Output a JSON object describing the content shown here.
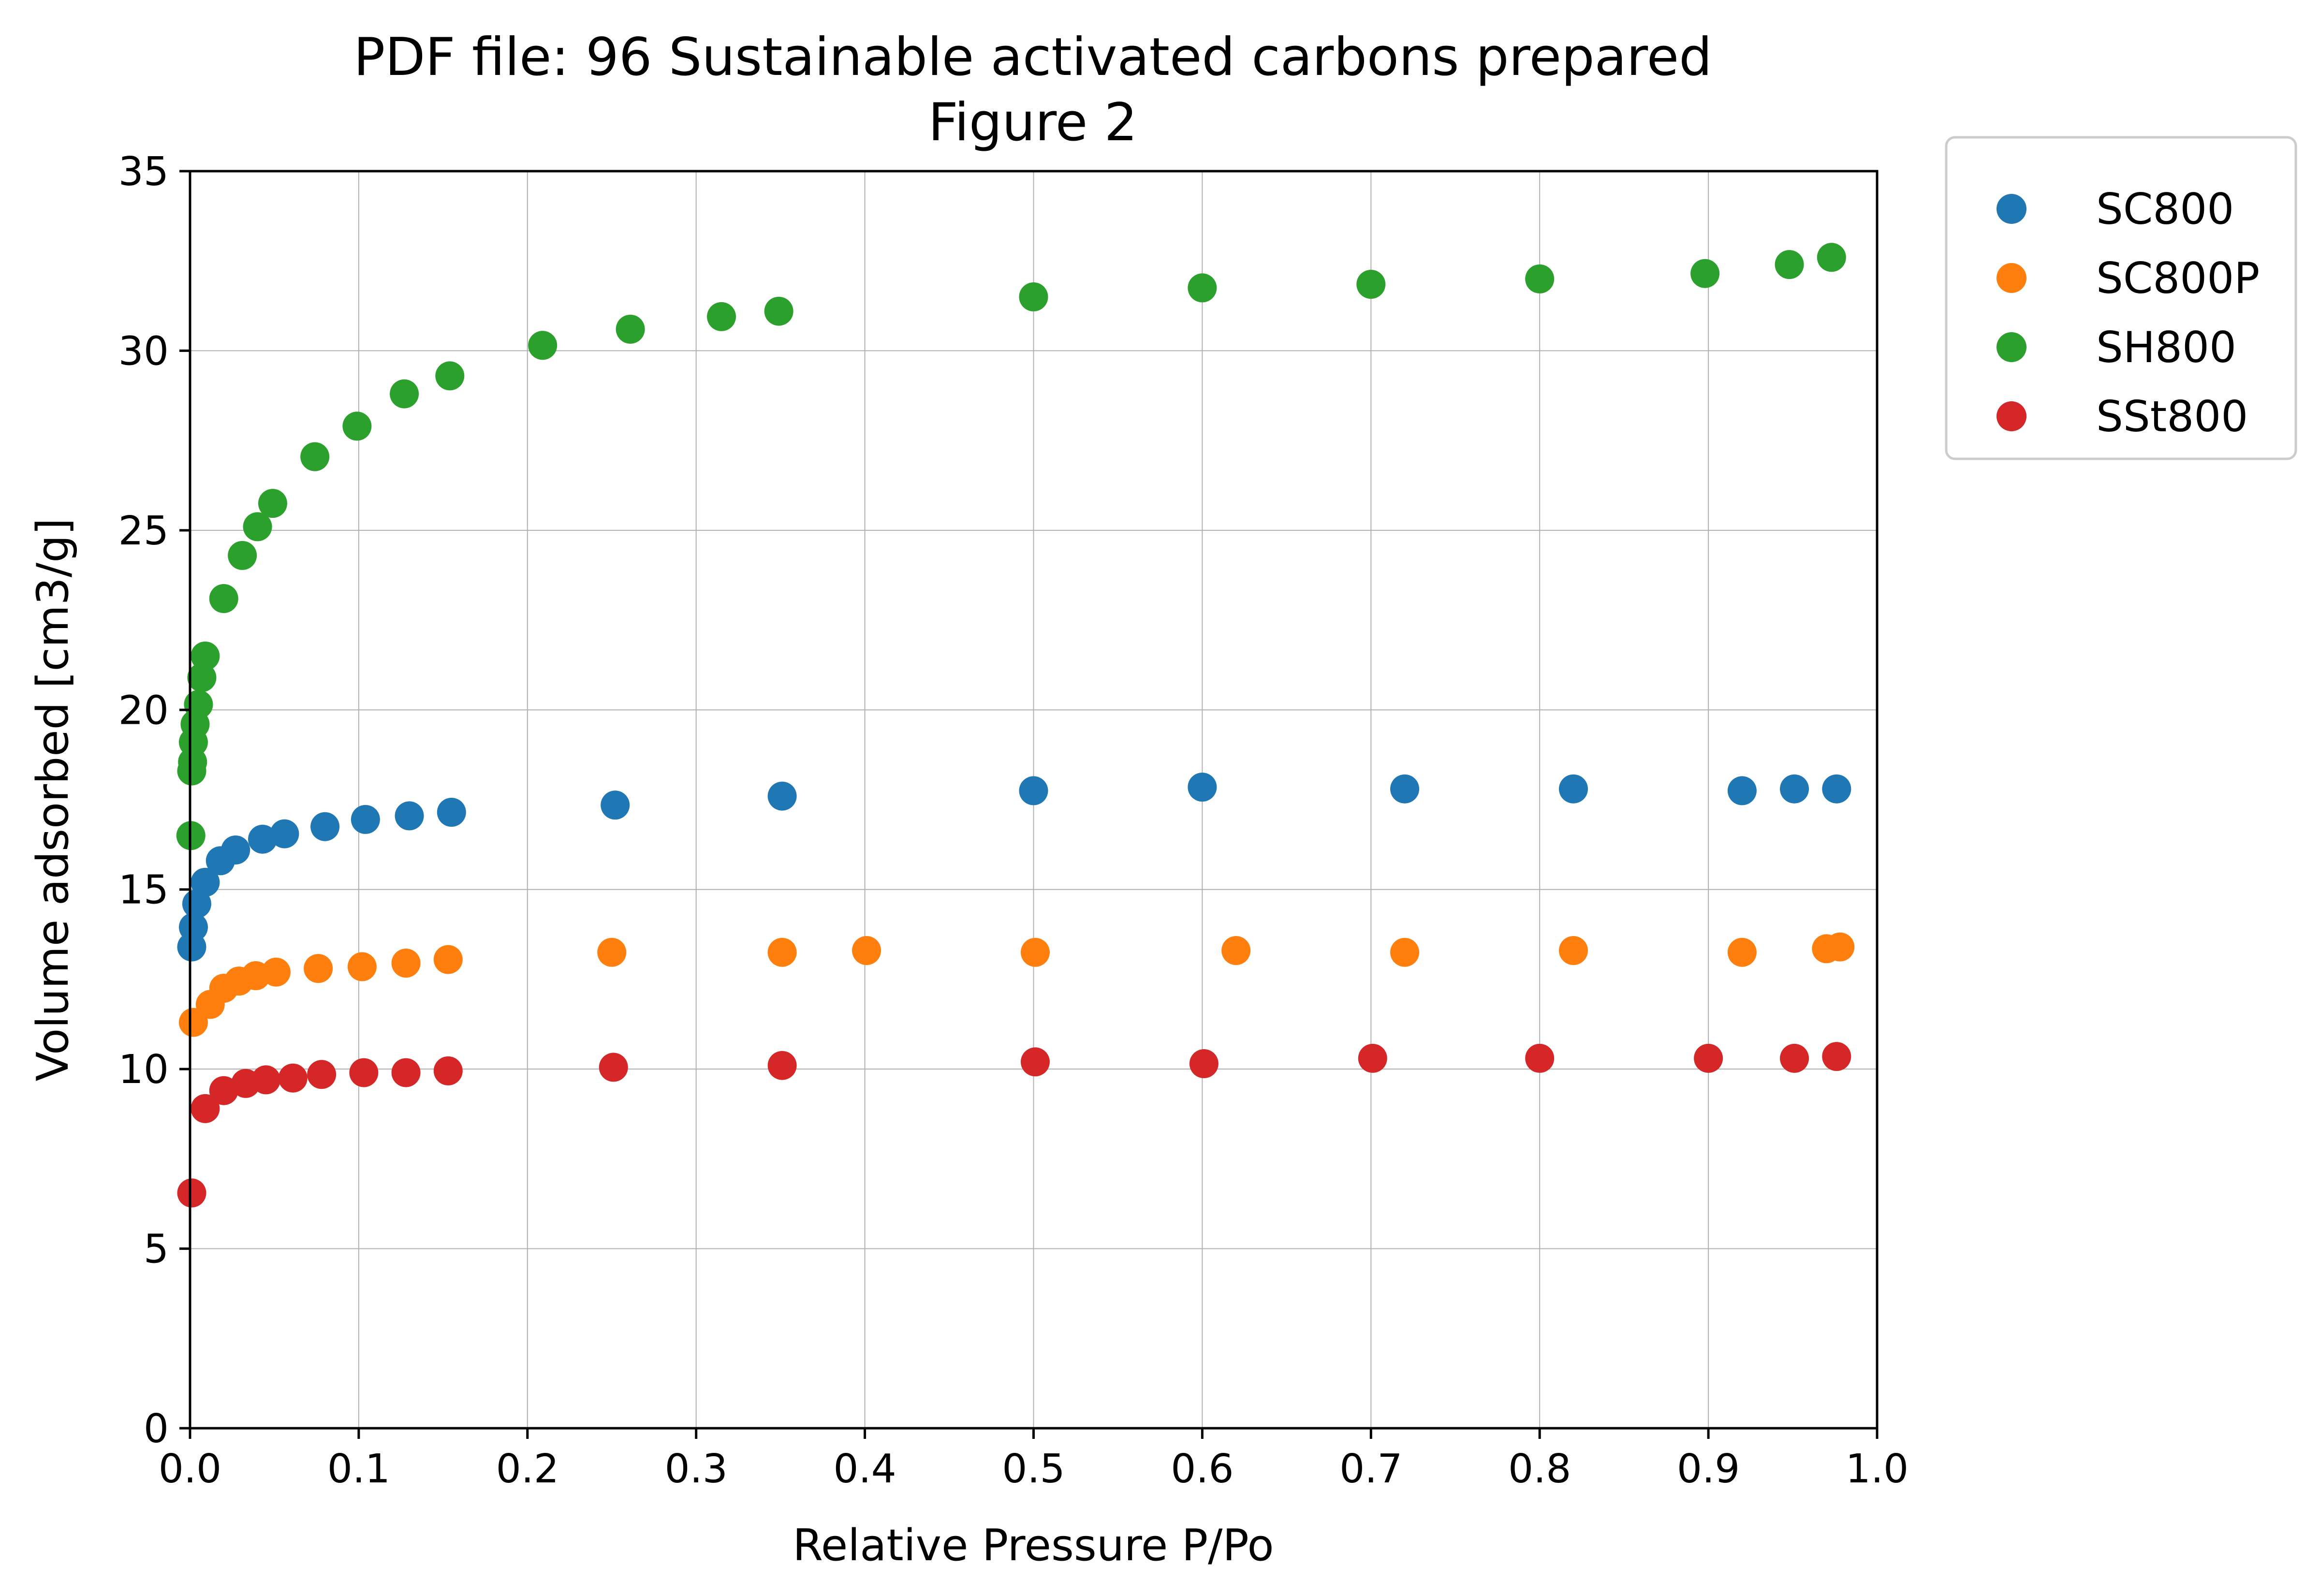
{
  "chart_data": {
    "type": "scatter",
    "title": "PDF file: 96 Sustainable activated carbons prepared",
    "subtitle": "Figure 2",
    "xlabel": "Relative Pressure P/Po",
    "ylabel": "Volume adsorbed [cm3/g]",
    "xlim": [
      0,
      1.0
    ],
    "ylim": [
      0,
      35
    ],
    "x_ticks": [
      "0.0",
      "0.1",
      "0.2",
      "0.3",
      "0.4",
      "0.5",
      "0.6",
      "0.7",
      "0.8",
      "0.9",
      "1.0"
    ],
    "y_ticks": [
      "0",
      "5",
      "10",
      "15",
      "20",
      "25",
      "30",
      "35"
    ],
    "grid": true,
    "legend_position": "outside-top-right",
    "series": [
      {
        "name": "SC800",
        "color": "#1f77b4",
        "points": [
          [
            0.001,
            13.4
          ],
          [
            0.002,
            13.95
          ],
          [
            0.004,
            14.6
          ],
          [
            0.009,
            15.2
          ],
          [
            0.018,
            15.8
          ],
          [
            0.027,
            16.1
          ],
          [
            0.043,
            16.4
          ],
          [
            0.056,
            16.55
          ],
          [
            0.08,
            16.75
          ],
          [
            0.104,
            16.95
          ],
          [
            0.13,
            17.05
          ],
          [
            0.155,
            17.15
          ],
          [
            0.252,
            17.35
          ],
          [
            0.351,
            17.6
          ],
          [
            0.5,
            17.75
          ],
          [
            0.6,
            17.85
          ],
          [
            0.72,
            17.8
          ],
          [
            0.82,
            17.8
          ],
          [
            0.92,
            17.75
          ],
          [
            0.951,
            17.8
          ],
          [
            0.976,
            17.8
          ]
        ]
      },
      {
        "name": "SC800P",
        "color": "#ff7f0e",
        "points": [
          [
            0.002,
            11.3
          ],
          [
            0.012,
            11.8
          ],
          [
            0.02,
            12.25
          ],
          [
            0.029,
            12.45
          ],
          [
            0.039,
            12.6
          ],
          [
            0.051,
            12.7
          ],
          [
            0.076,
            12.8
          ],
          [
            0.102,
            12.85
          ],
          [
            0.128,
            12.95
          ],
          [
            0.153,
            13.05
          ],
          [
            0.25,
            13.25
          ],
          [
            0.351,
            13.25
          ],
          [
            0.401,
            13.3
          ],
          [
            0.501,
            13.25
          ],
          [
            0.62,
            13.3
          ],
          [
            0.72,
            13.25
          ],
          [
            0.82,
            13.3
          ],
          [
            0.92,
            13.25
          ],
          [
            0.97,
            13.35
          ],
          [
            0.978,
            13.4
          ]
        ]
      },
      {
        "name": "SH800",
        "color": "#2ca02c",
        "points": [
          [
            0.0005,
            16.5
          ],
          [
            0.001,
            18.3
          ],
          [
            0.0015,
            18.55
          ],
          [
            0.002,
            19.1
          ],
          [
            0.003,
            19.6
          ],
          [
            0.005,
            20.15
          ],
          [
            0.007,
            20.9
          ],
          [
            0.009,
            21.5
          ],
          [
            0.02,
            23.1
          ],
          [
            0.031,
            24.3
          ],
          [
            0.04,
            25.1
          ],
          [
            0.049,
            25.75
          ],
          [
            0.074,
            27.05
          ],
          [
            0.099,
            27.9
          ],
          [
            0.127,
            28.8
          ],
          [
            0.154,
            29.3
          ],
          [
            0.209,
            30.15
          ],
          [
            0.261,
            30.6
          ],
          [
            0.315,
            30.95
          ],
          [
            0.349,
            31.1
          ],
          [
            0.5,
            31.5
          ],
          [
            0.6,
            31.75
          ],
          [
            0.7,
            31.85
          ],
          [
            0.8,
            32.0
          ],
          [
            0.898,
            32.15
          ],
          [
            0.948,
            32.4
          ],
          [
            0.973,
            32.6
          ]
        ]
      },
      {
        "name": "SSt800",
        "color": "#d62728",
        "points": [
          [
            0.001,
            6.55
          ],
          [
            0.009,
            8.9
          ],
          [
            0.02,
            9.4
          ],
          [
            0.033,
            9.6
          ],
          [
            0.045,
            9.7
          ],
          [
            0.061,
            9.75
          ],
          [
            0.078,
            9.85
          ],
          [
            0.103,
            9.9
          ],
          [
            0.128,
            9.9
          ],
          [
            0.153,
            9.95
          ],
          [
            0.251,
            10.05
          ],
          [
            0.351,
            10.1
          ],
          [
            0.501,
            10.2
          ],
          [
            0.601,
            10.15
          ],
          [
            0.701,
            10.3
          ],
          [
            0.8,
            10.3
          ],
          [
            0.9,
            10.3
          ],
          [
            0.951,
            10.3
          ],
          [
            0.976,
            10.35
          ]
        ]
      }
    ]
  }
}
